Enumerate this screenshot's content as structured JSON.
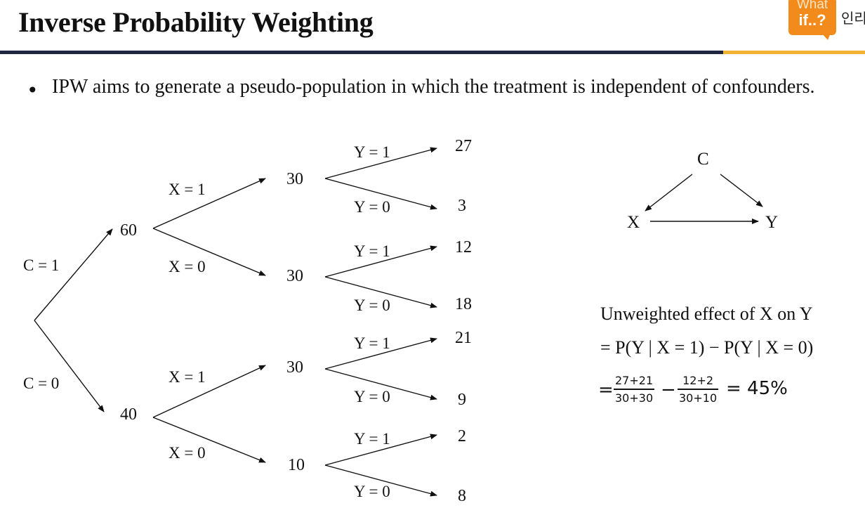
{
  "header": {
    "title": "Inverse Probability Weighting",
    "logo_line1": "What",
    "logo_line2": "if..?",
    "corner_text": "인리"
  },
  "bullet": {
    "text": "IPW aims to generate a pseudo-population in which the treatment is independent of confounders."
  },
  "tree": {
    "c1_label": "C = 1",
    "c0_label": "C = 0",
    "c1_count": "60",
    "c0_count": "40",
    "c1_x1_label": "X = 1",
    "c1_x0_label": "X = 0",
    "c0_x1_label": "X = 1",
    "c0_x0_label": "X = 0",
    "c1_x1_count": "30",
    "c1_x0_count": "30",
    "c0_x1_count": "30",
    "c0_x0_count": "10",
    "y1_label": "Y = 1",
    "y0_label": "Y = 0",
    "leaves": [
      "27",
      "3",
      "12",
      "18",
      "21",
      "9",
      "2",
      "8"
    ]
  },
  "dag": {
    "c": "C",
    "x": "X",
    "y": "Y"
  },
  "formula": {
    "title": "Unweighted effect of X on Y",
    "line1": "= P(Y | X = 1) − P(Y | X = 0)",
    "eq": "=",
    "frac1_num": "27+21",
    "frac1_den": "30+30",
    "minus": "−",
    "frac2_num": "12+2",
    "frac2_den": "30+10",
    "result": "= 45%"
  }
}
